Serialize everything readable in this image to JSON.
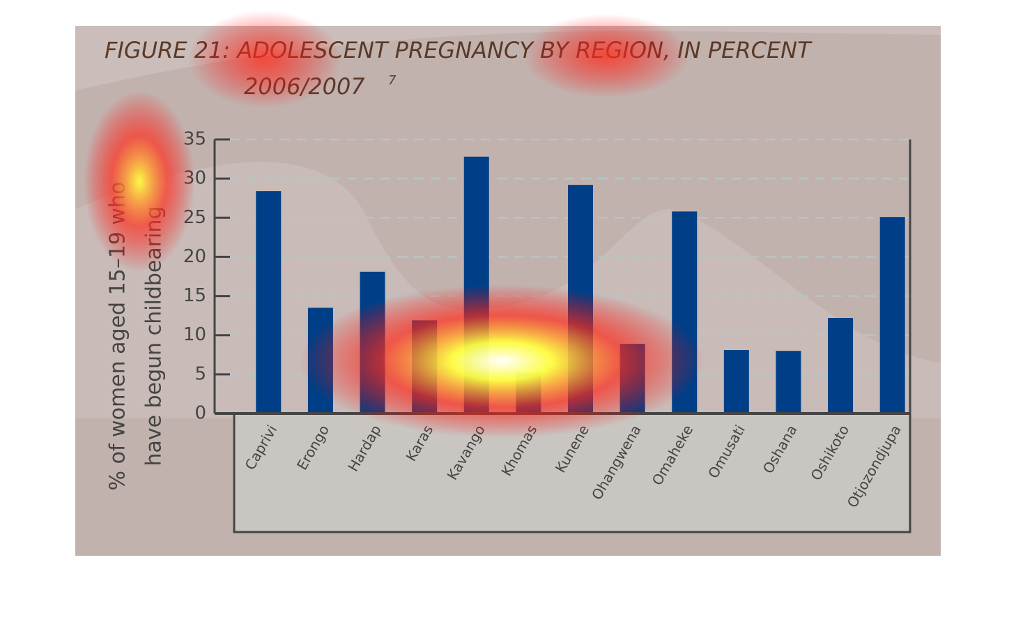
{
  "chart_data": {
    "type": "bar",
    "title": "FIGURE 21: ADOLESCENT PREGNANCY BY REGION, IN PERCENT",
    "subtitle": "2006/2007",
    "footnote_marker": "7",
    "y_label": [
      "% of women aged 15–19 who",
      "have begun childbearing"
    ],
    "categories": [
      "Caprivi",
      "Erongo",
      "Hardap",
      "Karas",
      "Kavango",
      "Khomas",
      "Kunene",
      "Ohangwena",
      "Omaheke",
      "Omusati",
      "Oshana",
      "Oshikoto",
      "Otjozondjupa"
    ],
    "values": [
      28.4,
      13.5,
      18.1,
      11.9,
      32.8,
      5.2,
      29.2,
      8.9,
      25.8,
      8.1,
      8.0,
      12.2,
      25.1
    ],
    "color": "#003f87",
    "ylim": [
      0,
      35
    ],
    "yticks": [
      0,
      5,
      10,
      15,
      20,
      25,
      30,
      35
    ],
    "grid": true
  }
}
